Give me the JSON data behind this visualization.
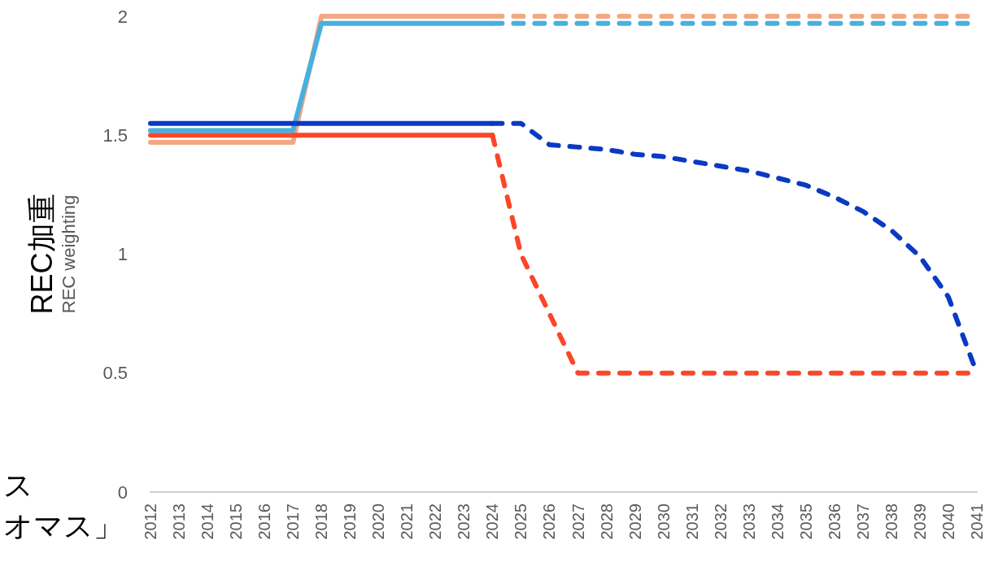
{
  "chart_data": {
    "type": "line",
    "ylabel": "REC加重\nREC weighting",
    "categories": [
      "2012",
      "2013",
      "2014",
      "2015",
      "2016",
      "2017",
      "2018",
      "2019",
      "2020",
      "2021",
      "2022",
      "2023",
      "2024",
      "2025",
      "2026",
      "2027",
      "2028",
      "2029",
      "2030",
      "2031",
      "2032",
      "2033",
      "2034",
      "2035",
      "2036",
      "2037",
      "2038",
      "2039",
      "2040",
      "2041"
    ],
    "ylim": [
      0,
      2
    ],
    "yticks": [
      0,
      0.5,
      1,
      1.5,
      2
    ],
    "grid": false,
    "marker": "none",
    "annotations": [
      "ス",
      "オマス」"
    ],
    "series": [
      {
        "color": "#f2a882",
        "line_style": "solid",
        "values": [
          1.47,
          1.47,
          1.47,
          1.47,
          1.47,
          1.47,
          2,
          2,
          2,
          2,
          2,
          2,
          2,
          null,
          null,
          null,
          null,
          null,
          null,
          null,
          null,
          null,
          null,
          null,
          null,
          null,
          null,
          null,
          null,
          null
        ]
      },
      {
        "color": "#f2a882",
        "line_style": "dashed",
        "values": [
          null,
          null,
          null,
          null,
          null,
          null,
          null,
          null,
          null,
          null,
          null,
          null,
          2,
          2,
          2,
          2,
          2,
          2,
          2,
          2,
          2,
          2,
          2,
          2,
          2,
          2,
          2,
          2,
          2,
          2
        ]
      },
      {
        "color": "#fc4628",
        "line_style": "solid",
        "values": [
          1.5,
          1.5,
          1.5,
          1.5,
          1.5,
          1.5,
          1.5,
          1.5,
          1.5,
          1.5,
          1.5,
          1.5,
          1.5,
          null,
          null,
          null,
          null,
          null,
          null,
          null,
          null,
          null,
          null,
          null,
          null,
          null,
          null,
          null,
          null,
          null
        ]
      },
      {
        "color": "#fc4628",
        "line_style": "dashed",
        "values": [
          null,
          null,
          null,
          null,
          null,
          null,
          null,
          null,
          null,
          null,
          null,
          null,
          1.5,
          1,
          0.75,
          0.5,
          0.5,
          0.5,
          0.5,
          0.5,
          0.5,
          0.5,
          0.5,
          0.5,
          0.5,
          0.5,
          0.5,
          0.5,
          0.5,
          0.5
        ]
      },
      {
        "color": "#47b0de",
        "line_style": "solid",
        "values": [
          1.52,
          1.52,
          1.52,
          1.52,
          1.52,
          1.52,
          1.97,
          1.97,
          1.97,
          1.97,
          1.97,
          1.97,
          1.97,
          null,
          null,
          null,
          null,
          null,
          null,
          null,
          null,
          null,
          null,
          null,
          null,
          null,
          null,
          null,
          null,
          null
        ]
      },
      {
        "color": "#47b0de",
        "line_style": "dashed",
        "values": [
          null,
          null,
          null,
          null,
          null,
          null,
          null,
          null,
          null,
          null,
          null,
          null,
          1.97,
          1.97,
          1.97,
          1.97,
          1.97,
          1.97,
          1.97,
          1.97,
          1.97,
          1.97,
          1.97,
          1.97,
          1.97,
          1.97,
          1.97,
          1.97,
          1.97,
          1.97
        ]
      },
      {
        "color": "#0a3ac4",
        "line_style": "solid",
        "values": [
          1.55,
          1.55,
          1.55,
          1.55,
          1.55,
          1.55,
          1.55,
          1.55,
          1.55,
          1.55,
          1.55,
          1.55,
          1.55,
          null,
          null,
          null,
          null,
          null,
          null,
          null,
          null,
          null,
          null,
          null,
          null,
          null,
          null,
          null,
          null,
          null
        ]
      },
      {
        "color": "#0a3ac4",
        "line_style": "dashed",
        "values": [
          null,
          null,
          null,
          null,
          null,
          null,
          null,
          null,
          null,
          null,
          null,
          null,
          1.55,
          1.55,
          1.46,
          1.45,
          1.44,
          1.42,
          1.41,
          1.39,
          1.37,
          1.35,
          1.32,
          1.29,
          1.24,
          1.18,
          1.1,
          0.99,
          0.82,
          0.5
        ]
      }
    ]
  }
}
